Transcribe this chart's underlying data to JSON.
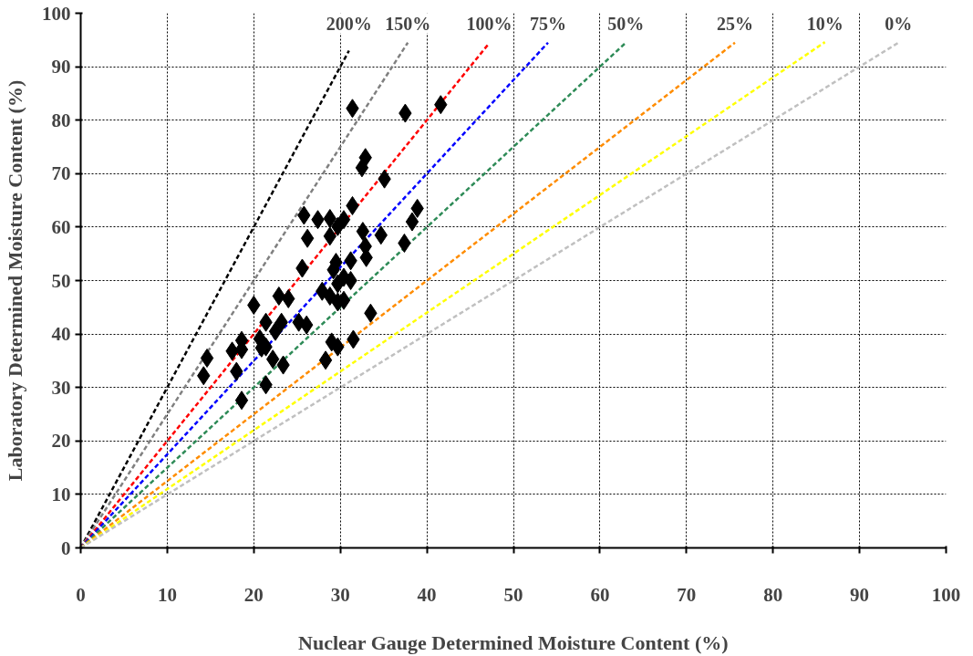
{
  "chart_data": {
    "type": "scatter",
    "xlabel": "Nuclear Gauge Determined Moisture Content (%)",
    "ylabel": "Laboratory Determined Moisture Content (%)",
    "xlim": [
      0,
      100
    ],
    "ylim": [
      0,
      100
    ],
    "xticks": [
      0,
      10,
      20,
      30,
      40,
      50,
      60,
      70,
      80,
      90,
      100
    ],
    "yticks": [
      0,
      10,
      20,
      30,
      40,
      50,
      60,
      70,
      80,
      90,
      100
    ],
    "grid": true,
    "legend": false,
    "marker": "diamond",
    "series": [
      {
        "name": "200%",
        "type": "line",
        "line_style": "dashed",
        "marker": "none",
        "color": "#000000",
        "x": [
          0,
          31
        ],
        "values": [
          0,
          93
        ]
      },
      {
        "name": "150%",
        "type": "line",
        "line_style": "dashed",
        "marker": "none",
        "color": "#808080",
        "x": [
          0,
          37.8
        ],
        "values": [
          0,
          94.5
        ]
      },
      {
        "name": "100%",
        "type": "line",
        "line_style": "dashed",
        "marker": "none",
        "color": "#ff0000",
        "x": [
          0,
          47.2
        ],
        "values": [
          0,
          94.4
        ]
      },
      {
        "name": "75%",
        "type": "line",
        "line_style": "dashed",
        "marker": "none",
        "color": "#0000ff",
        "x": [
          0,
          54
        ],
        "values": [
          0,
          94.5
        ]
      },
      {
        "name": "50%",
        "type": "line",
        "line_style": "dashed",
        "marker": "none",
        "color": "#2e8b57",
        "x": [
          0,
          63
        ],
        "values": [
          0,
          94.5
        ]
      },
      {
        "name": "25%",
        "type": "line",
        "line_style": "dashed",
        "marker": "none",
        "color": "#ff8c00",
        "x": [
          0,
          75.6
        ],
        "values": [
          0,
          94.5
        ]
      },
      {
        "name": "10%",
        "type": "line",
        "line_style": "dashed",
        "marker": "none",
        "color": "#ffff00",
        "x": [
          0,
          86
        ],
        "values": [
          0,
          94.6
        ]
      },
      {
        "name": "0%",
        "type": "line",
        "line_style": "dashed",
        "marker": "none",
        "color": "#c0c0c0",
        "x": [
          0,
          94.5
        ],
        "values": [
          0,
          94.5
        ]
      },
      {
        "color": "#000000",
        "x": [
          31.4,
          37.5,
          41.6,
          32.9,
          32.5,
          35.1,
          31.4,
          38.9,
          38.3,
          25.8,
          27.4,
          28.8,
          30.4,
          29.7,
          32.6,
          34.7,
          26.2,
          28.8,
          32.9,
          37.4,
          33.0,
          29.5,
          31.2,
          29.2,
          25.6,
          30.4,
          31.2,
          29.7,
          27.9,
          28.8,
          29.7,
          30.4,
          22.9,
          24.0,
          20.0,
          33.5,
          21.4,
          23.2,
          25.2,
          26.1,
          22.5,
          18.6,
          20.7,
          21.4,
          29.0,
          29.7,
          31.5,
          22.2,
          23.4,
          17.5,
          18.6,
          14.6,
          20.9,
          28.3,
          14.2,
          18.0,
          21.4,
          18.6
        ],
        "values": [
          82.2,
          81.3,
          82.9,
          73.0,
          71.1,
          69.0,
          64.0,
          63.5,
          61.0,
          62.2,
          61.4,
          61.6,
          61.4,
          60.1,
          59.2,
          58.5,
          57.9,
          58.3,
          56.4,
          57.0,
          54.3,
          53.4,
          53.7,
          52.0,
          52.3,
          50.6,
          50.0,
          49.4,
          48.0,
          47.1,
          46.0,
          46.3,
          47.1,
          46.6,
          45.4,
          43.9,
          42.2,
          42.2,
          42.2,
          41.7,
          40.5,
          38.8,
          39.1,
          37.6,
          38.5,
          37.6,
          39.0,
          35.3,
          34.2,
          36.8,
          37.1,
          35.5,
          37.4,
          35.1,
          32.2,
          33.0,
          30.5,
          27.6
        ]
      }
    ]
  }
}
